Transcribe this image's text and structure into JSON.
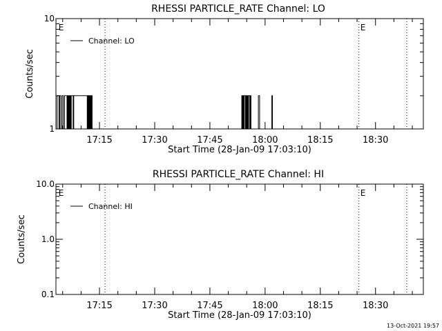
{
  "chart_data": [
    {
      "type": "line",
      "title": "RHESSI PARTICLE_RATE Channel: LO",
      "xlabel": "Start Time (28-Jan-09 17:03:10)",
      "ylabel": "Counts/sec",
      "y_scale": "log",
      "ylim": [
        1,
        10
      ],
      "y_ticks": [
        1,
        10
      ],
      "y_tick_labels": [
        "1",
        "10"
      ],
      "xlim": [
        "17:03:10",
        "18:43:00"
      ],
      "x_ticks": [
        "17:15",
        "17:30",
        "17:45",
        "18:00",
        "18:15",
        "18:30"
      ],
      "legend": {
        "position": "top-left",
        "entries": [
          "Channel: LO"
        ]
      },
      "vertical_markers": [
        {
          "x": "17:03:30",
          "label": "E",
          "style": "none"
        },
        {
          "x": "17:16:30",
          "label": "",
          "style": "dotted"
        },
        {
          "x": "18:25:30",
          "label": "E",
          "style": "dotted"
        },
        {
          "x": "18:38:30",
          "label": "",
          "style": "dotted"
        }
      ],
      "series": [
        {
          "name": "Channel: LO",
          "x": [
            "17:03:10",
            "17:03:30",
            "17:03:50",
            "17:04:00",
            "17:04:10",
            "17:04:30",
            "17:04:50",
            "17:05:10",
            "17:05:30",
            "17:05:50",
            "17:06:10",
            "17:06:20",
            "17:06:30",
            "17:06:40",
            "17:06:50",
            "17:07:00",
            "17:07:10",
            "17:07:20",
            "17:07:30",
            "17:07:40",
            "17:07:50",
            "17:08:00",
            "17:08:10",
            "17:11:30",
            "17:11:40",
            "17:11:50",
            "17:12:00",
            "17:12:10",
            "17:12:20",
            "17:12:30",
            "17:12:40",
            "17:12:50",
            "17:13:00",
            "17:13:10",
            "17:53:30",
            "17:53:40",
            "17:53:50",
            "17:54:00",
            "17:54:10",
            "17:54:20",
            "17:54:30",
            "17:54:40",
            "17:54:50",
            "17:55:00",
            "17:55:10",
            "17:55:20",
            "17:55:30",
            "17:55:40",
            "17:55:50",
            "17:56:00",
            "17:56:10",
            "17:56:20",
            "17:58:00",
            "17:58:10",
            "17:58:20",
            "17:58:30",
            "18:01:40",
            "18:01:50",
            "18:02:00",
            "18:02:10",
            "18:43:00"
          ],
          "y": [
            1,
            2,
            2,
            1,
            2,
            1,
            2,
            1,
            2,
            2,
            1,
            2,
            1,
            2,
            1,
            2,
            1,
            2,
            2,
            2,
            1,
            2,
            2,
            2,
            1,
            2,
            1,
            2,
            1,
            2,
            1,
            2,
            1,
            1,
            1,
            2,
            1,
            2,
            1,
            2,
            2,
            1,
            2,
            1,
            2,
            1,
            2,
            2,
            1,
            2,
            1,
            1,
            1,
            2,
            2,
            1,
            1,
            2,
            1,
            1,
            1
          ]
        }
      ]
    },
    {
      "type": "line",
      "title": "RHESSI PARTICLE_RATE Channel: HI",
      "xlabel": "Start Time (28-Jan-09 17:03:10)",
      "ylabel": "Counts/sec",
      "y_scale": "log",
      "ylim": [
        0.1,
        10
      ],
      "y_ticks": [
        0.1,
        1,
        10
      ],
      "y_tick_labels": [
        "0.1",
        "1.0",
        "10.0"
      ],
      "xlim": [
        "17:03:10",
        "18:43:00"
      ],
      "x_ticks": [
        "17:15",
        "17:30",
        "17:45",
        "18:00",
        "18:15",
        "18:30"
      ],
      "legend": {
        "position": "top-left",
        "entries": [
          "Channel: HI"
        ]
      },
      "vertical_markers": [
        {
          "x": "17:03:30",
          "label": "E",
          "style": "none"
        },
        {
          "x": "17:16:30",
          "label": "",
          "style": "dotted"
        },
        {
          "x": "18:25:30",
          "label": "E",
          "style": "dotted"
        },
        {
          "x": "18:38:30",
          "label": "",
          "style": "dotted"
        }
      ],
      "series": [
        {
          "name": "Channel: HI",
          "x": [],
          "y": []
        }
      ]
    }
  ],
  "timestamp": "13-Oct-2021 19:57"
}
